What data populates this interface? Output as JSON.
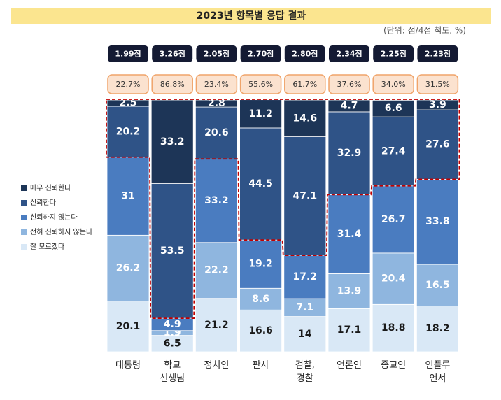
{
  "chart_data": {
    "type": "stacked_bar",
    "title": "2023년 항목별 응답 결과",
    "subtitle": "(단위: 점/4점 척도, %)",
    "categories": [
      "대통령",
      "학교\n선생님",
      "정치인",
      "판사",
      "검찰,\n경찰",
      "언론인",
      "종교인",
      "인플루\n언서"
    ],
    "score_labels": [
      "1.99점",
      "3.26점",
      "2.05점",
      "2.70점",
      "2.80점",
      "2.34점",
      "2.25점",
      "2.23점"
    ],
    "positive_labels": [
      "22.7%",
      "86.8%",
      "23.4%",
      "55.6%",
      "61.7%",
      "37.6%",
      "34.0%",
      "31.5%"
    ],
    "ylim": [
      0,
      100
    ],
    "series": [
      {
        "name": "잘 모르겠다",
        "color": "#d9e8f6",
        "values": [
          20.1,
          6.5,
          21.2,
          16.6,
          14.0,
          17.1,
          18.8,
          18.2
        ]
      },
      {
        "name": "전혀 신뢰하지 않는다",
        "color": "#8fb6df",
        "values": [
          26.2,
          1.9,
          22.2,
          8.6,
          7.1,
          13.9,
          20.4,
          16.5
        ]
      },
      {
        "name": "신뢰하지 않는다",
        "color": "#4a7cc0",
        "values": [
          31.0,
          4.9,
          33.2,
          19.2,
          17.2,
          31.4,
          26.7,
          33.8
        ]
      },
      {
        "name": "신뢰한다",
        "color": "#2f5387",
        "values": [
          20.2,
          53.5,
          20.6,
          44.5,
          47.1,
          32.9,
          27.4,
          27.6
        ]
      },
      {
        "name": "매우 신뢰한다",
        "color": "#1d3557",
        "values": [
          2.5,
          33.2,
          2.8,
          11.2,
          14.6,
          4.7,
          6.6,
          3.9
        ]
      }
    ],
    "legend": "left"
  }
}
